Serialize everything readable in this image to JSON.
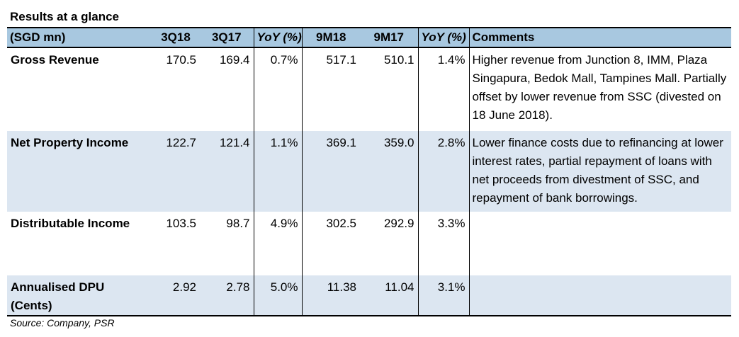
{
  "title": "Results at a glance",
  "source": "Source: Company, PSR",
  "table": {
    "headers": [
      "(SGD mn)",
      "3Q18",
      "3Q17",
      "YoY (%)",
      "9M18",
      "9M17",
      "YoY (%)",
      "Comments"
    ],
    "rows": [
      {
        "label": "Gross Revenue",
        "values": [
          "170.5",
          "169.4",
          "0.7%",
          "517.1",
          "510.1",
          "1.4%"
        ],
        "comment": "Higher revenue from Junction 8, IMM, Plaza Singapura, Bedok Mall, Tampines Mall. Partially offset by lower revenue from SSC (divested on 18 June 2018)."
      },
      {
        "label": "Net Property Income",
        "values": [
          "122.7",
          "121.4",
          "1.1%",
          "369.1",
          "359.0",
          "2.8%"
        ],
        "comment": "Lower finance costs due to refinancing at lower interest rates, partial repayment of loans with net proceeds from divestment of SSC, and repayment of bank borrowings."
      },
      {
        "label": "Distributable Income",
        "values": [
          "103.5",
          "98.7",
          "4.9%",
          "302.5",
          "292.9",
          "3.3%"
        ],
        "comment": ""
      },
      {
        "label": "Annualised DPU (Cents)",
        "values": [
          "2.92",
          "2.78",
          "5.0%",
          "11.38",
          "11.04",
          "3.1%"
        ],
        "comment": ""
      }
    ]
  }
}
